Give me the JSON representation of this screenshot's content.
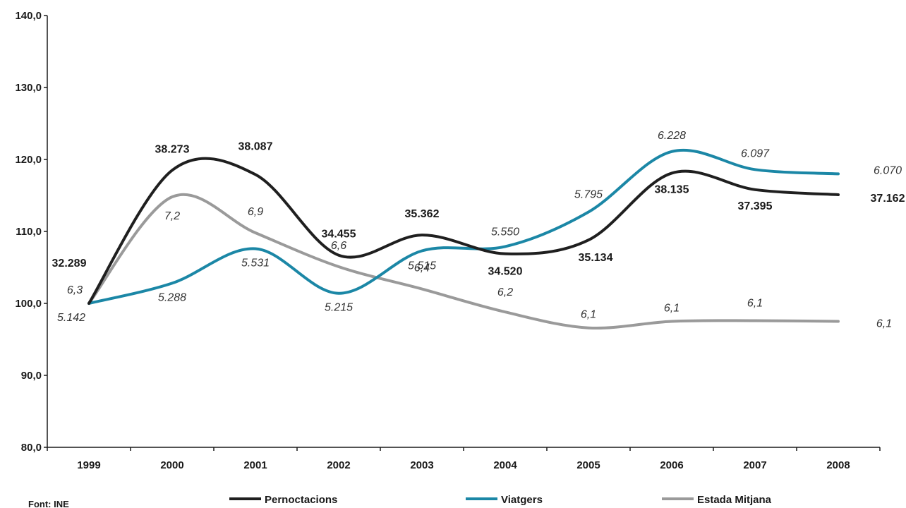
{
  "chart_data": {
    "type": "line",
    "categories": [
      "1999",
      "2000",
      "2001",
      "2002",
      "2003",
      "2004",
      "2005",
      "2006",
      "2007",
      "2008"
    ],
    "ylim": [
      80,
      140
    ],
    "yticks": [
      "80,0",
      "90,0",
      "100,0",
      "110,0",
      "120,0",
      "130,0",
      "140,0"
    ],
    "source": "Font: INE",
    "series": [
      {
        "name": "Pernoctacions",
        "color": "#1f1f1f",
        "values": [
          100.0,
          118.5,
          117.9,
          106.7,
          109.5,
          106.9,
          108.8,
          118.1,
          115.8,
          115.1
        ],
        "labels": [
          "32.289",
          "38.273",
          "38.087",
          "34.455",
          "35.362",
          "34.520",
          "35.134",
          "38.135",
          "37.395",
          "37.162"
        ]
      },
      {
        "name": "Viatgers",
        "color": "#1b87a6",
        "values": [
          100.0,
          102.8,
          107.6,
          101.4,
          107.3,
          107.9,
          112.7,
          121.1,
          118.6,
          118.0
        ],
        "labels": [
          "5.142",
          "5.288",
          "5.531",
          "5.215",
          "5.515",
          "5.550",
          "5.795",
          "6.228",
          "6.097",
          "6.070"
        ]
      },
      {
        "name": "Estada Mitjana",
        "color": "#9a9a9a",
        "values": [
          100.0,
          114.8,
          109.8,
          105.1,
          102.0,
          98.8,
          96.6,
          97.5,
          97.6,
          97.5
        ],
        "labels": [
          "6,3",
          "7,2",
          "6,9",
          "6,6",
          "6,4",
          "6,2",
          "6,1",
          "6,1",
          "6,1",
          "6,1"
        ]
      }
    ]
  }
}
